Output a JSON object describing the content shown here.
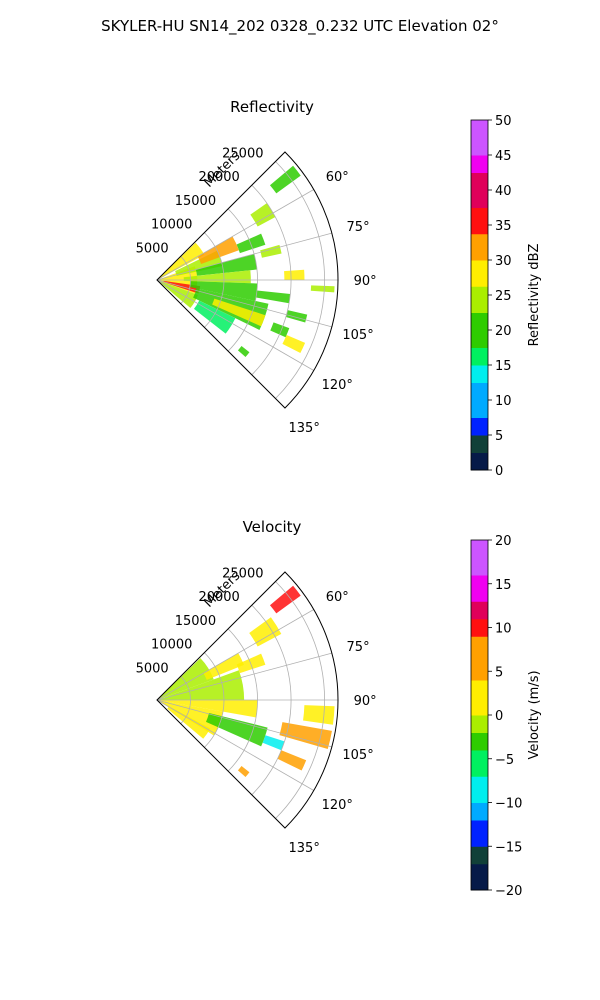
{
  "figure": {
    "suptitle": "SKYLER-HU  SN14_202  0328_0.232 UTC Elevation 02°"
  },
  "chart_data": [
    {
      "type": "polar-sector",
      "title": "Reflectivity",
      "radial_label": "Meters",
      "theta_range_deg": [
        45,
        135
      ],
      "r_max": 27000,
      "r_ticks": [
        5000,
        10000,
        15000,
        20000,
        25000
      ],
      "r_tick_labels": [
        "5000",
        "10000",
        "15000",
        "20000",
        "25000"
      ],
      "theta_ticks": [
        60,
        75,
        90,
        105,
        120,
        135
      ],
      "theta_tick_labels": [
        "60°",
        "75°",
        "90°",
        "105°",
        "120°",
        "135°"
      ],
      "grid": true,
      "colorbar": {
        "label": "Reflectivity dBZ",
        "min": 0,
        "max": 50,
        "ticks": [
          0,
          5,
          10,
          15,
          20,
          25,
          30,
          35,
          40,
          45,
          50
        ],
        "tick_labels": [
          "0",
          "5",
          "10",
          "15",
          "20",
          "25",
          "30",
          "35",
          "40",
          "45",
          "50"
        ],
        "stops": [
          {
            "v": 0,
            "c": "#061a48"
          },
          {
            "v": 3,
            "c": "#114038"
          },
          {
            "v": 5,
            "c": "#0022ff"
          },
          {
            "v": 8,
            "c": "#00aaff"
          },
          {
            "v": 12,
            "c": "#00eeee"
          },
          {
            "v": 15,
            "c": "#00f060"
          },
          {
            "v": 18,
            "c": "#2ecc00"
          },
          {
            "v": 22,
            "c": "#aaee00"
          },
          {
            "v": 26,
            "c": "#ffee00"
          },
          {
            "v": 30,
            "c": "#ffa000"
          },
          {
            "v": 34,
            "c": "#ff1010"
          },
          {
            "v": 38,
            "c": "#e0005a"
          },
          {
            "v": 42,
            "c": "#f000f0"
          },
          {
            "v": 45,
            "c": "#cc55ff"
          },
          {
            "v": 50,
            "c": "#ffe8ff"
          }
        ]
      },
      "echoes": [
        {
          "az0": 46,
          "az1": 62,
          "r0": 0,
          "r1": 8000,
          "v": 26
        },
        {
          "az0": 70,
          "az1": 110,
          "r0": 0,
          "r1": 6000,
          "v": 27
        },
        {
          "az0": 110,
          "az1": 130,
          "r0": 0,
          "r1": 6500,
          "v": 25
        },
        {
          "az0": 98,
          "az1": 108,
          "r0": 1000,
          "r1": 6500,
          "v": 34
        },
        {
          "az0": 64,
          "az1": 78,
          "r0": 3000,
          "r1": 10000,
          "v": 22
        },
        {
          "az0": 60,
          "az1": 70,
          "r0": 7000,
          "r1": 13000,
          "v": 30
        },
        {
          "az0": 75,
          "az1": 84,
          "r0": 6000,
          "r1": 15000,
          "v": 20
        },
        {
          "az0": 84,
          "az1": 92,
          "r0": 4000,
          "r1": 14000,
          "v": 22
        },
        {
          "az0": 92,
          "az1": 102,
          "r0": 5000,
          "r1": 15000,
          "v": 19
        },
        {
          "az0": 102,
          "az1": 116,
          "r0": 6000,
          "r1": 17000,
          "v": 18
        },
        {
          "az0": 108,
          "az1": 114,
          "r0": 9000,
          "r1": 17000,
          "v": 26
        },
        {
          "az0": 116,
          "az1": 128,
          "r0": 7000,
          "r1": 13000,
          "v": 16
        },
        {
          "az0": 66,
          "az1": 72,
          "r0": 13000,
          "r1": 17000,
          "v": 20
        },
        {
          "az0": 55,
          "az1": 62,
          "r0": 17000,
          "r1": 20000,
          "v": 22
        },
        {
          "az0": 50,
          "az1": 54,
          "r0": 22000,
          "r1": 26500,
          "v": 21
        },
        {
          "az0": 74,
          "az1": 78,
          "r0": 16000,
          "r1": 19000,
          "v": 24
        },
        {
          "az0": 86,
          "az1": 90,
          "r0": 19000,
          "r1": 22000,
          "v": 27
        },
        {
          "az0": 92,
          "az1": 94,
          "r0": 23000,
          "r1": 26500,
          "v": 22
        },
        {
          "az0": 96,
          "az1": 100,
          "r0": 15000,
          "r1": 20000,
          "v": 19
        },
        {
          "az0": 103,
          "az1": 106,
          "r0": 20000,
          "r1": 23000,
          "v": 21
        },
        {
          "az0": 110,
          "az1": 114,
          "r0": 18500,
          "r1": 21000,
          "v": 20
        },
        {
          "az0": 113,
          "az1": 117,
          "r0": 21000,
          "r1": 24000,
          "v": 28
        },
        {
          "az0": 128,
          "az1": 131,
          "r0": 16000,
          "r1": 17500,
          "v": 20
        }
      ]
    },
    {
      "type": "polar-sector",
      "title": "Velocity",
      "radial_label": "Meters",
      "theta_range_deg": [
        45,
        135
      ],
      "r_max": 27000,
      "r_ticks": [
        5000,
        10000,
        15000,
        20000,
        25000
      ],
      "r_tick_labels": [
        "5000",
        "10000",
        "15000",
        "20000",
        "25000"
      ],
      "theta_ticks": [
        60,
        75,
        90,
        105,
        120,
        135
      ],
      "theta_tick_labels": [
        "60°",
        "75°",
        "90°",
        "105°",
        "120°",
        "135°"
      ],
      "grid": true,
      "colorbar": {
        "label": "Velocity (m/s)",
        "min": -20,
        "max": 20,
        "ticks": [
          -20,
          -15,
          -10,
          -5,
          0,
          5,
          10,
          15,
          20
        ],
        "tick_labels": [
          "−20",
          "−15",
          "−10",
          "−5",
          "0",
          "5",
          "10",
          "15",
          "20"
        ],
        "stops": [
          {
            "v": -20,
            "c": "#061a48"
          },
          {
            "v": -17,
            "c": "#114038"
          },
          {
            "v": -15,
            "c": "#0022ff"
          },
          {
            "v": -12,
            "c": "#00aaff"
          },
          {
            "v": -10,
            "c": "#00eeee"
          },
          {
            "v": -7,
            "c": "#00f060"
          },
          {
            "v": -4,
            "c": "#2ecc00"
          },
          {
            "v": -2,
            "c": "#aaee00"
          },
          {
            "v": 0,
            "c": "#ffee00"
          },
          {
            "v": 4,
            "c": "#ffa000"
          },
          {
            "v": 9,
            "c": "#ff1010"
          },
          {
            "v": 11,
            "c": "#e0005a"
          },
          {
            "v": 13,
            "c": "#f000f0"
          },
          {
            "v": 16,
            "c": "#cc55ff"
          },
          {
            "v": 20,
            "c": "#ffe8ff"
          }
        ]
      },
      "echoes": [
        {
          "az0": 46,
          "az1": 70,
          "r0": 0,
          "r1": 9000,
          "v": -2
        },
        {
          "az0": 70,
          "az1": 90,
          "r0": 0,
          "r1": 13000,
          "v": -1.5
        },
        {
          "az0": 90,
          "az1": 100,
          "r0": 0,
          "r1": 15000,
          "v": 0
        },
        {
          "az0": 100,
          "az1": 122,
          "r0": 0,
          "r1": 10000,
          "v": 1.5
        },
        {
          "az0": 104,
          "az1": 114,
          "r0": 8000,
          "r1": 17000,
          "v": -4
        },
        {
          "az0": 118,
          "az1": 130,
          "r0": 2000,
          "r1": 9000,
          "v": 3
        },
        {
          "az0": 60,
          "az1": 68,
          "r0": 8000,
          "r1": 14000,
          "v": 0.5
        },
        {
          "az0": 66,
          "az1": 72,
          "r0": 13000,
          "r1": 17000,
          "v": 3
        },
        {
          "az0": 54,
          "az1": 62,
          "r0": 17000,
          "r1": 21000,
          "v": 2
        },
        {
          "az0": 50,
          "az1": 54,
          "r0": 22000,
          "r1": 26500,
          "v": 9
        },
        {
          "az0": 92,
          "az1": 98,
          "r0": 22000,
          "r1": 26500,
          "v": 3
        },
        {
          "az0": 100,
          "az1": 106,
          "r0": 19000,
          "r1": 26500,
          "v": 5
        },
        {
          "az0": 112,
          "az1": 116,
          "r0": 20000,
          "r1": 24000,
          "v": 8
        },
        {
          "az0": 108,
          "az1": 112,
          "r0": 17000,
          "r1": 20000,
          "v": -8
        },
        {
          "az0": 128,
          "az1": 131,
          "r0": 16000,
          "r1": 17500,
          "v": 6
        }
      ]
    }
  ]
}
